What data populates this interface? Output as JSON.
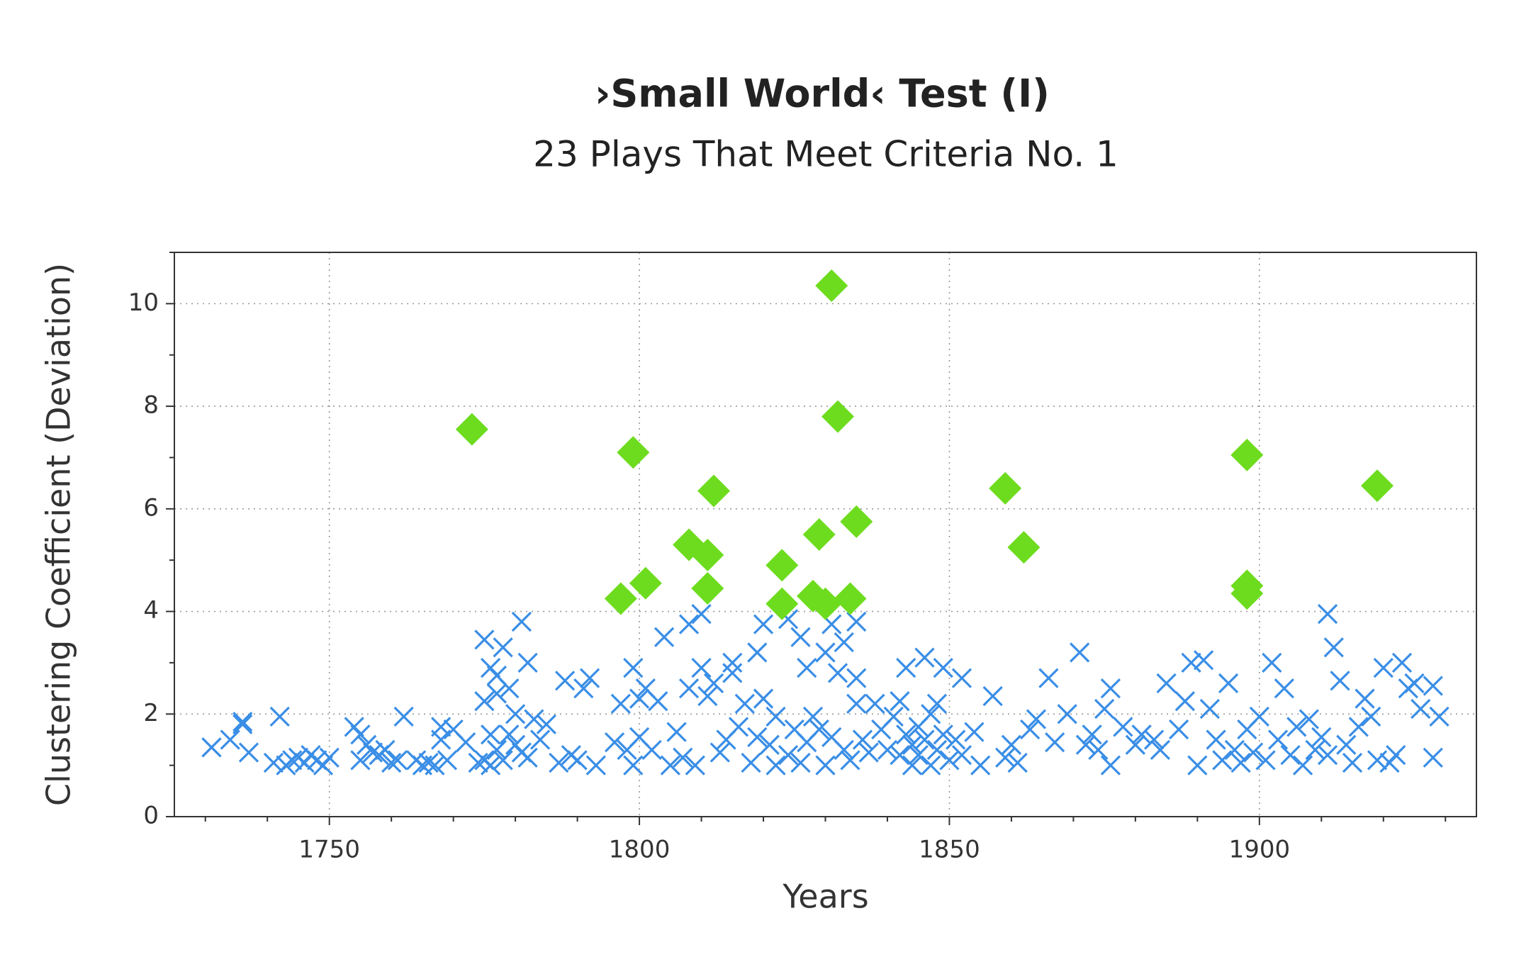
{
  "chart_data": {
    "type": "scatter",
    "title": "›Small World‹ Test (I)",
    "subtitle": "23 Plays That Meet Criteria No. 1",
    "x_label": "Years",
    "y_label": "Clustering Coefficient (Deviation)",
    "xlim": [
      1725,
      1935
    ],
    "ylim": [
      0,
      11
    ],
    "xticks": [
      1750,
      1800,
      1850,
      1900
    ],
    "yticks": [
      0,
      2,
      4,
      6,
      8,
      10
    ],
    "xminorticks": [
      1730,
      1740,
      1760,
      1770,
      1780,
      1790,
      1810,
      1820,
      1830,
      1840,
      1860,
      1870,
      1880,
      1890,
      1910,
      1920,
      1930
    ],
    "yminorticks": [
      1,
      3,
      5,
      7,
      9,
      11
    ],
    "grid": true,
    "series": [
      {
        "color": "#3a8ee6",
        "marker": "x",
        "x": [
          1731,
          1734,
          1736,
          1736,
          1737,
          1741,
          1742,
          1743,
          1744,
          1745,
          1746,
          1747,
          1748,
          1749,
          1750,
          1754,
          1755,
          1755,
          1756,
          1757,
          1758,
          1759,
          1760,
          1761,
          1762,
          1764,
          1765,
          1766,
          1767,
          1768,
          1768,
          1769,
          1770,
          1772,
          1774,
          1775,
          1775,
          1775,
          1776,
          1776,
          1776,
          1777,
          1777,
          1777,
          1778,
          1778,
          1779,
          1779,
          1780,
          1780,
          1781,
          1781,
          1782,
          1782,
          1783,
          1784,
          1785,
          1787,
          1788,
          1789,
          1790,
          1791,
          1792,
          1793,
          1796,
          1797,
          1798,
          1799,
          1799,
          1800,
          1800,
          1801,
          1802,
          1803,
          1804,
          1805,
          1806,
          1807,
          1808,
          1808,
          1809,
          1810,
          1810,
          1811,
          1812,
          1813,
          1814,
          1815,
          1815,
          1816,
          1817,
          1818,
          1819,
          1819,
          1820,
          1820,
          1821,
          1822,
          1822,
          1824,
          1824,
          1825,
          1826,
          1826,
          1827,
          1827,
          1828,
          1829,
          1830,
          1830,
          1831,
          1831,
          1832,
          1833,
          1833,
          1834,
          1835,
          1835,
          1835,
          1836,
          1837,
          1838,
          1839,
          1840,
          1841,
          1842,
          1842,
          1843,
          1843,
          1844,
          1844,
          1845,
          1845,
          1846,
          1846,
          1847,
          1847,
          1848,
          1848,
          1849,
          1849,
          1850,
          1851,
          1852,
          1852,
          1854,
          1855,
          1857,
          1859,
          1860,
          1861,
          1863,
          1864,
          1866,
          1867,
          1869,
          1871,
          1872,
          1873,
          1874,
          1875,
          1876,
          1876,
          1878,
          1880,
          1881,
          1883,
          1884,
          1885,
          1887,
          1888,
          1889,
          1890,
          1891,
          1892,
          1893,
          1894,
          1895,
          1896,
          1897,
          1898,
          1899,
          1900,
          1901,
          1902,
          1903,
          1904,
          1905,
          1906,
          1907,
          1908,
          1909,
          1910,
          1911,
          1911,
          1912,
          1913,
          1914,
          1915,
          1916,
          1917,
          1918,
          1919,
          1920,
          1921,
          1922,
          1923,
          1924,
          1925,
          1926,
          1928,
          1928,
          1929
        ],
        "values": [
          1.35,
          1.5,
          1.85,
          1.8,
          1.25,
          1.05,
          1.95,
          1.0,
          1.1,
          1.15,
          1.05,
          1.2,
          1.1,
          1.0,
          1.15,
          1.75,
          1.6,
          1.1,
          1.4,
          1.25,
          1.2,
          1.3,
          1.05,
          1.1,
          1.95,
          1.1,
          1.0,
          1.05,
          1.0,
          1.5,
          1.75,
          1.1,
          1.7,
          1.45,
          1.05,
          3.45,
          2.25,
          1.1,
          2.9,
          1.6,
          1.0,
          2.75,
          2.4,
          1.3,
          1.1,
          3.3,
          2.5,
          1.6,
          2.0,
          1.4,
          3.8,
          1.25,
          3.0,
          1.15,
          1.9,
          1.5,
          1.8,
          1.05,
          2.65,
          1.2,
          1.1,
          2.5,
          2.7,
          1.0,
          1.45,
          2.2,
          1.3,
          2.9,
          1.0,
          2.3,
          1.55,
          2.5,
          1.3,
          2.25,
          3.5,
          1.0,
          1.65,
          1.15,
          2.5,
          3.75,
          1.0,
          3.95,
          2.9,
          2.35,
          2.6,
          1.25,
          1.5,
          2.8,
          3.0,
          1.75,
          2.2,
          1.05,
          3.2,
          1.55,
          3.75,
          2.3,
          1.4,
          1.0,
          1.95,
          3.85,
          1.2,
          1.7,
          3.5,
          1.05,
          2.9,
          1.45,
          1.95,
          1.7,
          3.2,
          1.0,
          3.75,
          1.55,
          2.8,
          3.4,
          1.3,
          1.1,
          2.7,
          3.8,
          2.2,
          1.5,
          1.25,
          2.2,
          1.7,
          1.3,
          1.95,
          2.25,
          1.2,
          2.9,
          1.6,
          1.4,
          1.0,
          1.75,
          1.2,
          3.1,
          1.5,
          1.0,
          2.0,
          1.3,
          2.2,
          1.6,
          2.9,
          1.1,
          1.5,
          2.7,
          1.2,
          1.65,
          1.0,
          2.35,
          1.15,
          1.4,
          1.05,
          1.7,
          1.9,
          2.7,
          1.45,
          2.0,
          3.2,
          1.4,
          1.6,
          1.3,
          2.1,
          2.5,
          1.0,
          1.75,
          1.4,
          1.6,
          1.5,
          1.3,
          2.6,
          1.7,
          2.25,
          3.0,
          1.0,
          3.05,
          2.1,
          1.5,
          1.1,
          2.6,
          1.3,
          1.05,
          1.7,
          1.25,
          1.95,
          1.1,
          3.0,
          1.5,
          2.5,
          1.2,
          1.75,
          1.0,
          1.9,
          1.3,
          1.55,
          3.95,
          1.2,
          3.3,
          2.65,
          1.4,
          1.05,
          1.75,
          2.3,
          1.95,
          1.1,
          2.9,
          1.05,
          1.2,
          3.0,
          2.5,
          2.6,
          2.1,
          2.55,
          1.15,
          1.95
        ]
      },
      {
        "color": "#6ddc1e",
        "marker": "diamond",
        "x": [
          1773,
          1797,
          1799,
          1801,
          1808,
          1811,
          1811,
          1812,
          1823,
          1823,
          1828,
          1829,
          1830,
          1831,
          1832,
          1834,
          1835,
          1859,
          1862,
          1898,
          1898,
          1898,
          1919
        ],
        "values": [
          7.55,
          4.25,
          7.1,
          4.55,
          5.3,
          5.1,
          4.45,
          6.35,
          4.9,
          4.15,
          4.3,
          5.5,
          4.15,
          10.35,
          7.8,
          4.25,
          5.75,
          6.4,
          5.25,
          7.05,
          4.5,
          4.35,
          6.45
        ]
      }
    ]
  }
}
